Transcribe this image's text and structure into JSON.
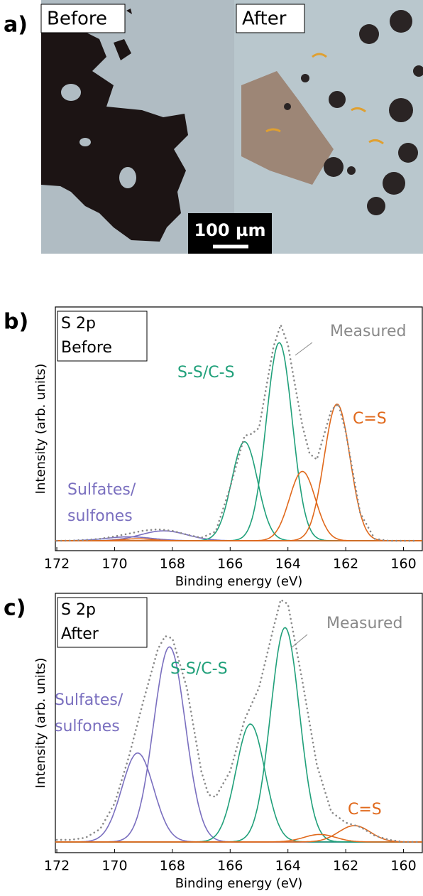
{
  "panel_a": {
    "label": "a)",
    "left": "Before",
    "right": "After",
    "scale_bar": "100 µm"
  },
  "chart_data": [
    {
      "type": "line",
      "panel_label": "b)",
      "title": [
        "S 2p",
        "Before"
      ],
      "x_label": "Binding energy (eV)",
      "y_label": "Intensity (arb. units)",
      "xlim": [
        172.05,
        159.35
      ],
      "xticks": [
        172,
        170,
        168,
        166,
        164,
        162,
        160
      ],
      "ylim": [
        -5,
        118
      ],
      "measured": {
        "name": "Measured",
        "color": "#8a8a8a",
        "x": [
          172,
          171.5,
          171,
          170.5,
          170,
          169.5,
          169,
          168.5,
          168,
          167.5,
          167,
          166.5,
          166,
          165.5,
          165.25,
          165,
          164.5,
          164.25,
          164,
          163.75,
          163.5,
          163.25,
          163,
          162.5,
          162.25,
          162,
          161.5,
          161,
          160.5,
          160,
          159.5
        ],
        "values": [
          0,
          0.1,
          0.4,
          1.0,
          2.2,
          3.6,
          5.1,
          5.8,
          5.0,
          3.1,
          1.5,
          4.7,
          27,
          53,
          54,
          57,
          98,
          109,
          99,
          78,
          58,
          44,
          41,
          66,
          69,
          55,
          14,
          1.0,
          0,
          0,
          0
        ]
      },
      "components": [
        {
          "name": [
            "Sulfates/",
            "sulfones"
          ],
          "color": "#7a6fbf",
          "peaks": [
            {
              "center": 168.3,
              "height": 5,
              "sigma": 0.8
            },
            {
              "center": 169.5,
              "height": 2,
              "sigma": 0.8
            }
          ]
        },
        {
          "name": [
            "S-S/C-S"
          ],
          "color": "#20a07a",
          "peaks": [
            {
              "center": 164.3,
              "height": 100,
              "sigma": 0.45
            },
            {
              "center": 165.5,
              "height": 50,
              "sigma": 0.45
            }
          ]
        },
        {
          "name": [
            "C=S"
          ],
          "color": "#e0691c",
          "peaks": [
            {
              "center": 162.3,
              "height": 69,
              "sigma": 0.45
            },
            {
              "center": 163.5,
              "height": 35,
              "sigma": 0.45
            },
            {
              "center": 169.2,
              "height": 1,
              "sigma": 0.5
            }
          ]
        }
      ]
    },
    {
      "type": "line",
      "panel_label": "c)",
      "title": [
        "S 2p",
        "After"
      ],
      "x_label": "Binding energy (eV)",
      "y_label": "Intensity (arb. units)",
      "xlim": [
        172.05,
        159.35
      ],
      "xticks": [
        172,
        170,
        168,
        166,
        164,
        162,
        160
      ],
      "ylim": [
        -5,
        116
      ],
      "measured": {
        "name": "Measured",
        "color": "#8a8a8a",
        "x": [
          172,
          171.5,
          171,
          170.5,
          170,
          169.5,
          169,
          168.5,
          168.25,
          168,
          167.5,
          167,
          166.75,
          166.5,
          166,
          165.5,
          165,
          164.5,
          164.25,
          164,
          163.5,
          163,
          162.5,
          162,
          161.5,
          161,
          160.5,
          160,
          159.5
        ],
        "values": [
          1,
          1,
          2,
          6,
          18,
          40,
          66,
          90,
          96,
          95,
          72,
          33,
          22,
          21,
          33,
          57,
          72,
          100,
          113,
          111,
          75,
          36,
          14,
          9,
          7,
          3,
          1,
          0,
          0
        ]
      },
      "components": [
        {
          "name": [
            "Sulfates/",
            "sulfones"
          ],
          "color": "#7a6fbf",
          "peaks": [
            {
              "center": 168.1,
              "height": 91,
              "sigma": 0.55
            },
            {
              "center": 169.2,
              "height": 41.5,
              "sigma": 0.55
            }
          ]
        },
        {
          "name": [
            "S-S/C-S"
          ],
          "color": "#20a07a",
          "peaks": [
            {
              "center": 164.1,
              "height": 100,
              "sigma": 0.5
            },
            {
              "center": 165.3,
              "height": 55,
              "sigma": 0.5
            }
          ]
        },
        {
          "name": [
            "C=S"
          ],
          "color": "#e0691c",
          "peaks": [
            {
              "center": 161.7,
              "height": 7.6,
              "sigma": 0.55
            },
            {
              "center": 162.9,
              "height": 3.5,
              "sigma": 0.55
            }
          ]
        }
      ]
    }
  ]
}
